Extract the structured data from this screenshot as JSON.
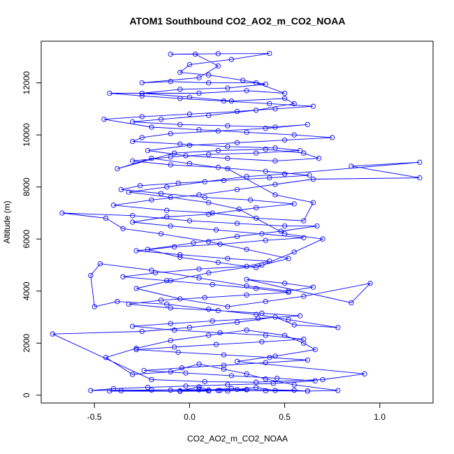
{
  "chart_data": {
    "type": "line",
    "title": "ATOM1 Southbound CO2_AO2_m_CO2_NOAA",
    "xlabel": "CO2_AO2_m_CO2_NOAA",
    "ylabel": "Altitude (m)",
    "xlim": [
      -0.78,
      1.28
    ],
    "ylim": [
      -300,
      13600
    ],
    "x_ticks": [
      -0.5,
      0.0,
      0.5,
      1.0
    ],
    "x_tick_labels": [
      "-0.5",
      "0.0",
      "0.5",
      "1.0"
    ],
    "y_ticks": [
      0,
      2000,
      4000,
      6000,
      8000,
      10000,
      12000
    ],
    "y_tick_labels": [
      "0",
      "2000",
      "4000",
      "6000",
      "8000",
      "10000",
      "12000"
    ],
    "grid": false,
    "legend": "none",
    "series_color": "#0000ff",
    "marker": "open-circle",
    "series": [
      {
        "points": [
          [
            0.16,
            180
          ],
          [
            0.2,
            160
          ],
          [
            0.3,
            210
          ],
          [
            0.22,
            260
          ],
          [
            0.1,
            200
          ],
          [
            0.05,
            320
          ],
          [
            -0.05,
            170
          ],
          [
            0.25,
            220
          ],
          [
            0.35,
            300
          ],
          [
            0.45,
            180
          ],
          [
            0.62,
            160
          ],
          [
            0.78,
            180
          ],
          [
            0.55,
            400
          ],
          [
            0.4,
            620
          ],
          [
            0.3,
            820
          ],
          [
            0.18,
            1000
          ],
          [
            0.05,
            1200
          ],
          [
            -0.1,
            900
          ],
          [
            -0.3,
            800
          ],
          [
            -0.44,
            1450
          ],
          [
            -0.28,
            1800
          ],
          [
            -0.1,
            2100
          ],
          [
            0.1,
            2300
          ],
          [
            0.3,
            2500
          ],
          [
            0.5,
            2300
          ],
          [
            0.6,
            2000
          ],
          [
            0.66,
            1750
          ],
          [
            0.45,
            1500
          ],
          [
            0.25,
            1300
          ],
          [
            0.92,
            820
          ],
          [
            0.7,
            600
          ],
          [
            0.35,
            500
          ],
          [
            0.08,
            520
          ],
          [
            -0.2,
            600
          ],
          [
            -0.72,
            2350
          ],
          [
            -0.25,
            2450
          ],
          [
            0.0,
            2600
          ],
          [
            0.25,
            2800
          ],
          [
            0.45,
            3000
          ],
          [
            0.55,
            2700
          ],
          [
            0.78,
            2600
          ],
          [
            0.52,
            2900
          ],
          [
            0.35,
            3100
          ],
          [
            0.1,
            3300
          ],
          [
            -0.12,
            3500
          ],
          [
            -0.38,
            3600
          ],
          [
            -0.5,
            3400
          ],
          [
            -0.52,
            4600
          ],
          [
            -0.47,
            5050
          ],
          [
            -0.2,
            4800
          ],
          [
            0.05,
            4500
          ],
          [
            0.3,
            4200
          ],
          [
            0.52,
            4000
          ],
          [
            0.65,
            4150
          ],
          [
            0.5,
            4300
          ],
          [
            0.3,
            4450
          ],
          [
            0.85,
            3550
          ],
          [
            0.95,
            4300
          ],
          [
            0.6,
            3800
          ],
          [
            0.4,
            3600
          ],
          [
            0.2,
            3400
          ],
          [
            -0.05,
            3700
          ],
          [
            -0.28,
            4100
          ],
          [
            -0.1,
            4400
          ],
          [
            0.1,
            4700
          ],
          [
            0.38,
            5000
          ],
          [
            0.52,
            5250
          ],
          [
            0.3,
            5600
          ],
          [
            0.1,
            5900
          ],
          [
            -0.15,
            6200
          ],
          [
            -0.35,
            6400
          ],
          [
            -0.44,
            6800
          ],
          [
            -0.67,
            7000
          ],
          [
            -0.3,
            6900
          ],
          [
            0.0,
            6700
          ],
          [
            0.25,
            6600
          ],
          [
            0.5,
            6500
          ],
          [
            0.67,
            6500
          ],
          [
            0.48,
            6300
          ],
          [
            0.25,
            6100
          ],
          [
            0.02,
            5850
          ],
          [
            -0.22,
            5600
          ],
          [
            -0.05,
            5300
          ],
          [
            0.15,
            5100
          ],
          [
            0.35,
            4900
          ],
          [
            0.55,
            5500
          ],
          [
            0.7,
            6000
          ],
          [
            0.5,
            6200
          ],
          [
            0.26,
            7150
          ],
          [
            0.1,
            7400
          ],
          [
            -0.1,
            7600
          ],
          [
            -0.32,
            7800
          ],
          [
            -0.12,
            8000
          ],
          [
            0.08,
            8200
          ],
          [
            0.3,
            8400
          ],
          [
            0.5,
            8500
          ],
          [
            1.21,
            8950
          ],
          [
            0.85,
            8800
          ],
          [
            1.21,
            8350
          ],
          [
            0.65,
            8300
          ],
          [
            0.45,
            8100
          ],
          [
            0.25,
            7900
          ],
          [
            0.05,
            7700
          ],
          [
            -0.2,
            7500
          ],
          [
            -0.4,
            7300
          ],
          [
            -0.12,
            7100
          ],
          [
            0.12,
            7000
          ],
          [
            0.35,
            6800
          ],
          [
            0.6,
            6700
          ],
          [
            0.65,
            7400
          ],
          [
            0.45,
            7700
          ],
          [
            0.2,
            8700
          ],
          [
            0.0,
            8900
          ],
          [
            -0.2,
            9100
          ],
          [
            -0.38,
            8700
          ],
          [
            -0.08,
            9300
          ],
          [
            0.15,
            9400
          ],
          [
            0.4,
            9450
          ],
          [
            0.6,
            9300
          ],
          [
            0.68,
            9100
          ],
          [
            0.45,
            9000
          ],
          [
            0.2,
            9100
          ],
          [
            -0.02,
            9200
          ],
          [
            -0.22,
            9400
          ],
          [
            0.0,
            9600
          ],
          [
            0.25,
            9700
          ],
          [
            0.5,
            9800
          ],
          [
            0.75,
            9900
          ],
          [
            0.55,
            10000
          ],
          [
            0.3,
            10100
          ],
          [
            0.05,
            10200
          ],
          [
            -0.2,
            10300
          ],
          [
            -0.45,
            10600
          ],
          [
            -0.25,
            10700
          ],
          [
            0.0,
            10800
          ],
          [
            0.25,
            10900
          ],
          [
            0.45,
            11000
          ],
          [
            0.65,
            11100
          ],
          [
            0.42,
            11200
          ],
          [
            0.18,
            11300
          ],
          [
            -0.05,
            11400
          ],
          [
            -0.25,
            11500
          ],
          [
            -0.42,
            11600
          ],
          [
            0.05,
            11600
          ],
          [
            0.3,
            11700
          ],
          [
            0.5,
            11600
          ],
          [
            0.35,
            12000
          ],
          [
            0.1,
            12000
          ],
          [
            -0.1,
            12050
          ],
          [
            -0.25,
            12000
          ],
          [
            0.05,
            12200
          ],
          [
            0.15,
            12650
          ],
          [
            0.03,
            13100
          ],
          [
            -0.1,
            13100
          ],
          [
            0.15,
            13120
          ],
          [
            0.42,
            13130
          ],
          [
            0.22,
            12900
          ],
          [
            0.0,
            12700
          ],
          [
            -0.05,
            12400
          ],
          [
            0.1,
            12300
          ],
          [
            0.28,
            12100
          ],
          [
            0.4,
            11950
          ],
          [
            0.2,
            11800
          ],
          [
            -0.05,
            11750
          ],
          [
            -0.25,
            11600
          ],
          [
            0.0,
            11450
          ],
          [
            0.22,
            11300
          ],
          [
            0.5,
            11400
          ],
          [
            0.55,
            11200
          ],
          [
            0.35,
            10950
          ],
          [
            0.1,
            10750
          ],
          [
            -0.15,
            10600
          ],
          [
            -0.3,
            10500
          ],
          [
            -0.05,
            10400
          ],
          [
            0.2,
            10350
          ],
          [
            0.45,
            10300
          ],
          [
            0.62,
            10400
          ],
          [
            0.4,
            10250
          ],
          [
            0.15,
            10150
          ],
          [
            -0.1,
            10050
          ],
          [
            -0.25,
            9900
          ],
          [
            -0.3,
            9750
          ],
          [
            -0.05,
            9650
          ],
          [
            0.2,
            9550
          ],
          [
            0.45,
            9500
          ],
          [
            0.58,
            9400
          ],
          [
            0.35,
            9300
          ],
          [
            0.1,
            9250
          ],
          [
            -0.1,
            9150
          ],
          [
            -0.3,
            9000
          ],
          [
            -0.1,
            8850
          ],
          [
            0.15,
            8750
          ],
          [
            0.4,
            8600
          ],
          [
            0.63,
            8450
          ],
          [
            0.42,
            8350
          ],
          [
            0.18,
            8250
          ],
          [
            -0.06,
            8150
          ],
          [
            -0.26,
            8050
          ],
          [
            -0.36,
            7900
          ],
          [
            -0.15,
            7750
          ],
          [
            0.08,
            7600
          ],
          [
            0.32,
            7500
          ],
          [
            0.55,
            7350
          ],
          [
            0.35,
            7200
          ],
          [
            0.1,
            6950
          ],
          [
            -0.12,
            6850
          ],
          [
            -0.3,
            6650
          ],
          [
            -0.1,
            6500
          ],
          [
            0.14,
            6350
          ],
          [
            0.38,
            6200
          ],
          [
            0.6,
            6050
          ],
          [
            0.4,
            5950
          ],
          [
            0.16,
            5800
          ],
          [
            -0.08,
            5700
          ],
          [
            -0.28,
            5550
          ],
          [
            -0.05,
            5400
          ],
          [
            0.2,
            5250
          ],
          [
            0.42,
            5150
          ],
          [
            0.3,
            4950
          ],
          [
            0.05,
            4850
          ],
          [
            -0.18,
            4700
          ],
          [
            -0.35,
            4550
          ],
          [
            -0.12,
            4400
          ],
          [
            0.12,
            4250
          ],
          [
            0.35,
            4100
          ],
          [
            0.52,
            3950
          ],
          [
            0.3,
            3850
          ],
          [
            0.08,
            3750
          ],
          [
            -0.15,
            3650
          ],
          [
            -0.32,
            3500
          ],
          [
            -0.1,
            3350
          ],
          [
            0.15,
            3250
          ],
          [
            0.38,
            3150
          ],
          [
            0.58,
            3050
          ],
          [
            0.36,
            2950
          ],
          [
            0.12,
            2850
          ],
          [
            -0.1,
            2750
          ],
          [
            -0.3,
            2650
          ],
          [
            -0.08,
            2500
          ],
          [
            0.16,
            2400
          ],
          [
            0.4,
            2300
          ],
          [
            0.6,
            2150
          ],
          [
            0.38,
            2050
          ],
          [
            0.14,
            1950
          ],
          [
            -0.08,
            1850
          ],
          [
            -0.28,
            1750
          ],
          [
            -0.06,
            1650
          ],
          [
            0.18,
            1550
          ],
          [
            0.42,
            1450
          ],
          [
            0.62,
            1350
          ],
          [
            0.4,
            1250
          ],
          [
            0.18,
            1150
          ],
          [
            -0.04,
            1050
          ],
          [
            -0.24,
            950
          ],
          [
            -0.02,
            850
          ],
          [
            0.22,
            750
          ],
          [
            0.46,
            650
          ],
          [
            0.66,
            550
          ],
          [
            0.44,
            450
          ],
          [
            0.2,
            400
          ],
          [
            -0.02,
            350
          ],
          [
            -0.22,
            300
          ],
          [
            -0.4,
            250
          ],
          [
            -0.52,
            180
          ],
          [
            -0.2,
            200
          ],
          [
            0.05,
            210
          ],
          [
            0.3,
            220
          ],
          [
            0.55,
            190
          ],
          [
            0.62,
            160
          ],
          [
            0.4,
            170
          ],
          [
            0.15,
            180
          ],
          [
            -0.1,
            190
          ],
          [
            -0.36,
            170
          ],
          [
            -0.42,
            160
          ],
          [
            -0.05,
            150
          ],
          [
            0.1,
            160
          ]
        ]
      }
    ]
  }
}
